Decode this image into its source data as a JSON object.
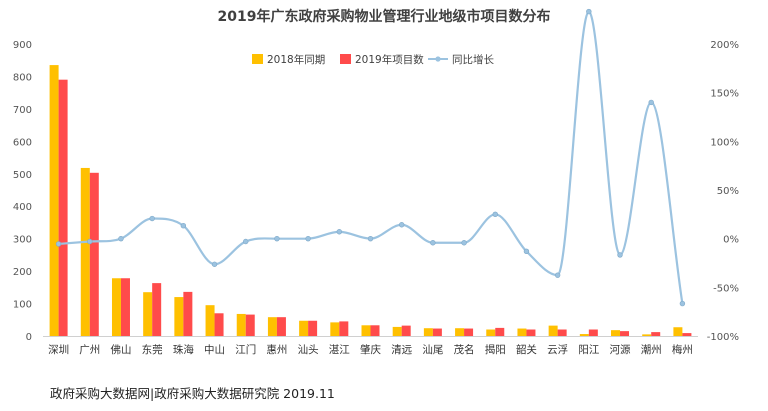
{
  "chart_data": {
    "type": "bar",
    "title": "2019年广东政府采购物业管理行业地级市项目数分布",
    "categories": [
      "深圳",
      "广州",
      "佛山",
      "东莞",
      "珠海",
      "中山",
      "江门",
      "惠州",
      "汕头",
      "湛江",
      "肇庆",
      "清远",
      "汕尾",
      "茂名",
      "揭阳",
      "韶关",
      "云浮",
      "阳江",
      "河源",
      "潮州",
      "梅州"
    ],
    "series": [
      {
        "name": "2018年同期",
        "type": "bar",
        "axis": "left",
        "color": "#ffc000",
        "values": [
          835,
          518,
          178,
          135,
          120,
          95,
          68,
          58,
          47,
          42,
          33,
          28,
          24,
          24,
          20,
          23,
          32,
          6,
          18,
          5,
          27
        ]
      },
      {
        "name": "2019年项目数",
        "type": "bar",
        "axis": "left",
        "color": "#ff4b4b",
        "values": [
          790,
          503,
          178,
          163,
          136,
          70,
          66,
          58,
          47,
          45,
          33,
          32,
          23,
          23,
          25,
          20,
          20,
          20,
          15,
          12,
          9
        ]
      },
      {
        "name": "同比增长",
        "type": "line",
        "axis": "right",
        "color": "#9cc3e0",
        "unit": "%",
        "values": [
          -5.4,
          -2.9,
          0,
          20.7,
          13.3,
          -26.3,
          -2.9,
          0,
          0,
          7.1,
          0,
          14.3,
          -4.2,
          -4.2,
          25,
          -13,
          -37.5,
          233.3,
          -16.7,
          140,
          -66.7
        ]
      }
    ],
    "y_left": {
      "min": 0,
      "max": 900,
      "step": 100,
      "ticks": [
        "0",
        "100",
        "200",
        "300",
        "400",
        "500",
        "600",
        "700",
        "800",
        "900"
      ]
    },
    "y_right": {
      "min": -100,
      "max": 200,
      "step": 50,
      "ticks": [
        "-100%",
        "-50%",
        "0%",
        "50%",
        "100%",
        "150%",
        "200%"
      ]
    },
    "legend_position": "top-center",
    "grid": false
  },
  "source_text": "政府采购大数据网|政府采购大数据研究院 2019.11"
}
